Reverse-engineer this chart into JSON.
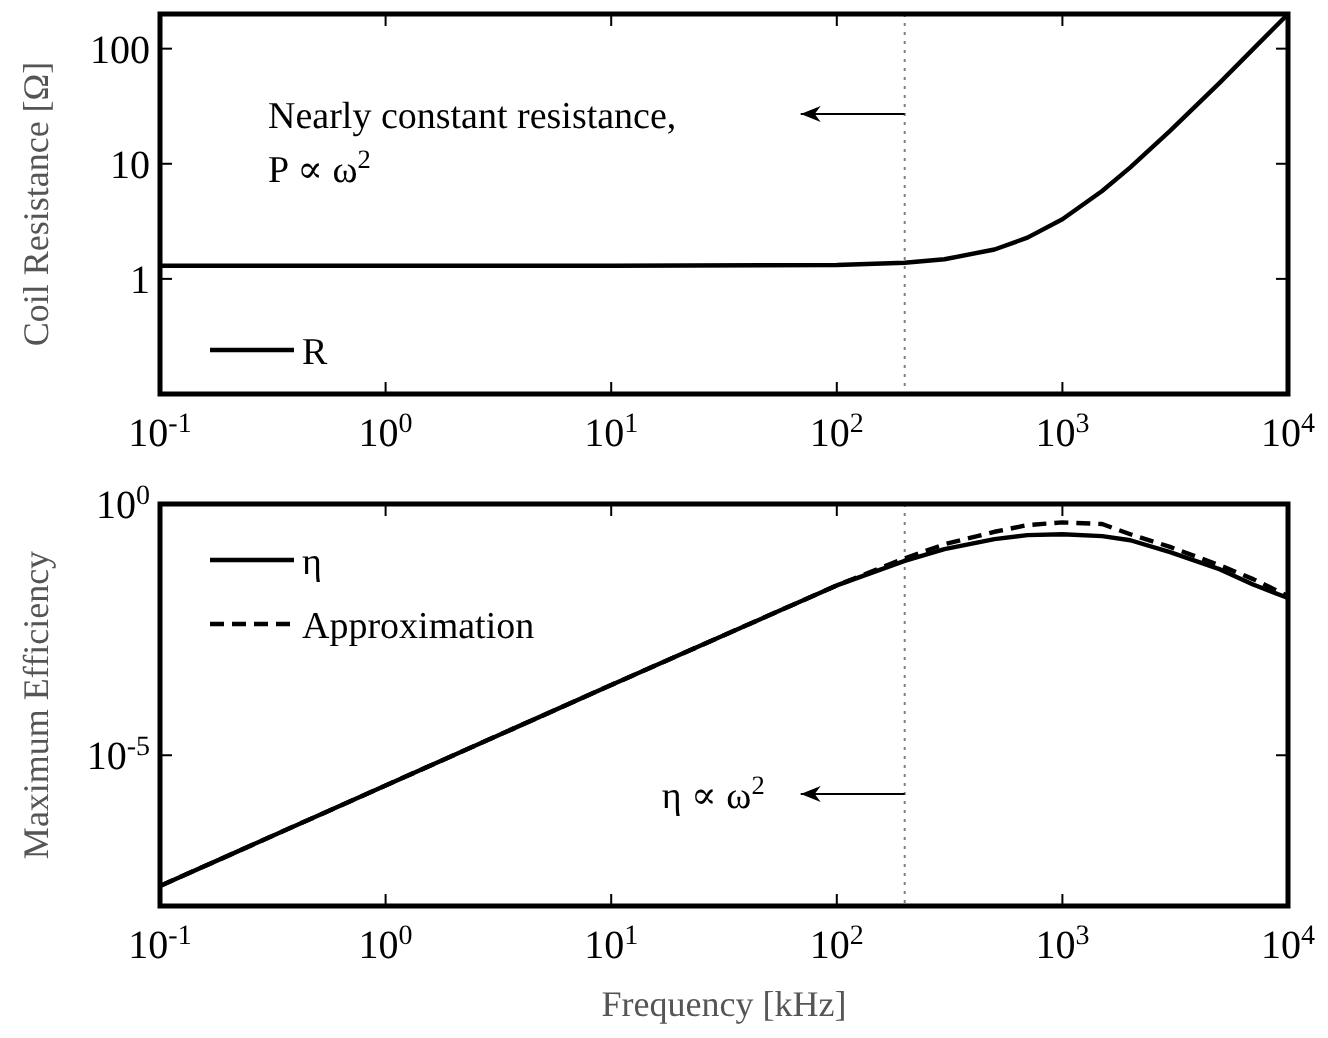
{
  "chart_data": [
    {
      "type": "line",
      "ylabel": "Coil Resistance [Ω]",
      "log": "xy",
      "grid": false,
      "legend": "bottom left",
      "x": [
        0.1,
        1,
        10,
        100,
        200,
        300,
        500,
        700,
        1000,
        1500,
        2000,
        3000,
        5000,
        7000,
        10000
      ],
      "series": [
        {
          "name": "R",
          "color": "#000000",
          "line_style": "solid",
          "values": [
            1.3,
            1.3,
            1.3,
            1.32,
            1.38,
            1.48,
            1.8,
            2.28,
            3.3,
            5.8,
            9.3,
            19.3,
            51,
            99,
            200
          ]
        }
      ],
      "xlim": [
        0.1,
        10000
      ],
      "ylim": [
        0.1,
        200
      ],
      "xticks": [
        {
          "value": 0.1,
          "label": "10$^{-1}$"
        },
        {
          "value": 1,
          "label": "10$^{0}$"
        },
        {
          "value": 10,
          "label": "10$^{1}$"
        },
        {
          "value": 100,
          "label": "10$^{2}$"
        },
        {
          "value": 1000,
          "label": "10$^{3}$"
        },
        {
          "value": 10000,
          "label": "10$^{4}$"
        }
      ],
      "yticks": [
        1,
        10,
        100
      ],
      "ref_lines": [
        {
          "axis": "x",
          "value": 200,
          "line_style": "dotted",
          "color": "#808080"
        }
      ],
      "annotations": [
        "Nearly constant resistance,",
        "P ∝ ω$^{2}$"
      ]
    },
    {
      "type": "line",
      "xlabel": "Frequency [kHz]",
      "ylabel": "Maximum Efficiency",
      "log": "xy",
      "grid": false,
      "legend": "top left",
      "x": [
        0.1,
        1,
        10,
        30,
        100,
        200,
        300,
        500,
        700,
        1000,
        1500,
        2000,
        3000,
        5000,
        7000,
        10000
      ],
      "series": [
        {
          "name": "η",
          "color": "#000000",
          "line_style": "solid",
          "values": [
            2.5e-08,
            2.5e-06,
            0.00025,
            0.0022,
            0.024,
            0.074,
            0.126,
            0.2,
            0.24,
            0.25,
            0.23,
            0.19,
            0.11,
            0.05,
            0.025,
            0.0135
          ]
        },
        {
          "name": "Approximation",
          "color": "#000000",
          "line_style": "dashed",
          "values": [
            2.5e-08,
            2.5e-06,
            0.00025,
            0.0022,
            0.024,
            0.083,
            0.158,
            0.28,
            0.38,
            0.43,
            0.4,
            0.25,
            0.14,
            0.06,
            0.032,
            0.0148
          ]
        }
      ],
      "xlim": [
        0.1,
        10000
      ],
      "ylim": [
        1e-08,
        1
      ],
      "xticks": [
        {
          "value": 0.1,
          "label": "10$^{-1}$"
        },
        {
          "value": 1,
          "label": "10$^{0}$"
        },
        {
          "value": 10,
          "label": "10$^{1}$"
        },
        {
          "value": 100,
          "label": "10$^{2}$"
        },
        {
          "value": 1000,
          "label": "10$^{3}$"
        },
        {
          "value": 10000,
          "label": "10$^{4}$"
        }
      ],
      "yticks": [
        {
          "value": 1e-05,
          "label": "10$^{-5}$"
        },
        {
          "value": 1,
          "label": "10$^{0}$"
        }
      ],
      "ref_lines": [
        {
          "axis": "x",
          "value": 200,
          "line_style": "dotted",
          "color": "#808080"
        }
      ],
      "annotations": [
        "η ∝ ω$^{2}$"
      ]
    }
  ]
}
